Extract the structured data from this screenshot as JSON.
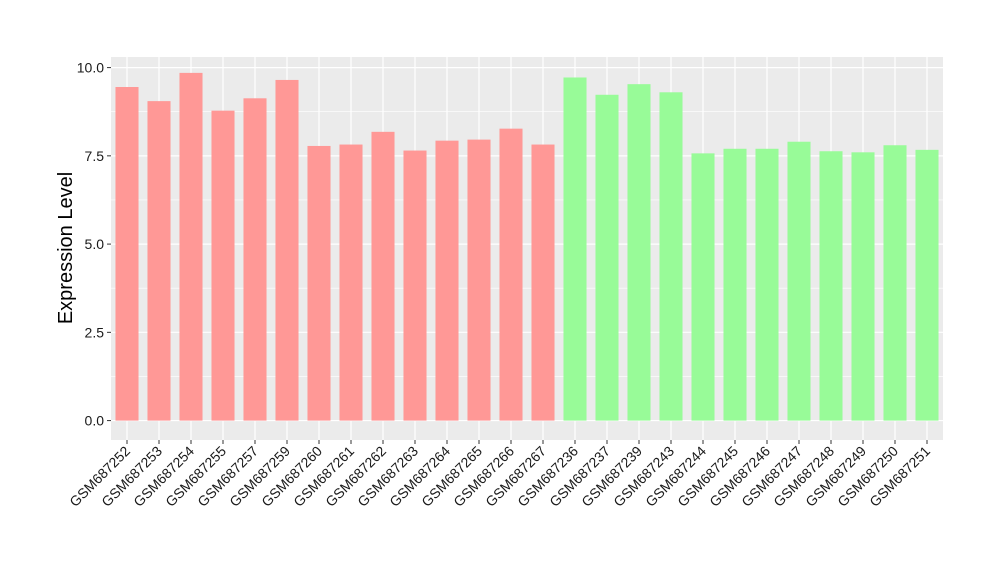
{
  "chart_data": {
    "type": "bar",
    "title": "",
    "xlabel": "",
    "ylabel": "Expression Level",
    "ylim": [
      -0.55,
      10.3
    ],
    "yticks": [
      0.0,
      2.5,
      5.0,
      7.5,
      10.0
    ],
    "ytick_labels": [
      "0.0",
      "2.5",
      "5.0",
      "7.5",
      "10.0"
    ],
    "grid": true,
    "legend": "none",
    "colors": {
      "panel_background": "#ebebeb",
      "grid_major": "#ffffff",
      "group_1": "#ff9896",
      "group_2": "#98fb98"
    },
    "categories": [
      "GSM687252",
      "GSM687253",
      "GSM687254",
      "GSM687255",
      "GSM687257",
      "GSM687259",
      "GSM687260",
      "GSM687261",
      "GSM687262",
      "GSM687263",
      "GSM687264",
      "GSM687265",
      "GSM687266",
      "GSM687267",
      "GSM687236",
      "GSM687237",
      "GSM687239",
      "GSM687243",
      "GSM687244",
      "GSM687245",
      "GSM687246",
      "GSM687247",
      "GSM687248",
      "GSM687249",
      "GSM687250",
      "GSM687251"
    ],
    "values": [
      9.45,
      9.05,
      9.85,
      8.78,
      9.13,
      9.65,
      7.78,
      7.82,
      8.18,
      7.65,
      7.93,
      7.96,
      8.27,
      7.82,
      9.72,
      9.23,
      9.53,
      9.3,
      7.57,
      7.7,
      7.7,
      7.9,
      7.63,
      7.6,
      7.8,
      7.67
    ],
    "groups": [
      1,
      1,
      1,
      1,
      1,
      1,
      1,
      1,
      1,
      1,
      1,
      1,
      1,
      1,
      2,
      2,
      2,
      2,
      2,
      2,
      2,
      2,
      2,
      2,
      2,
      2
    ]
  }
}
